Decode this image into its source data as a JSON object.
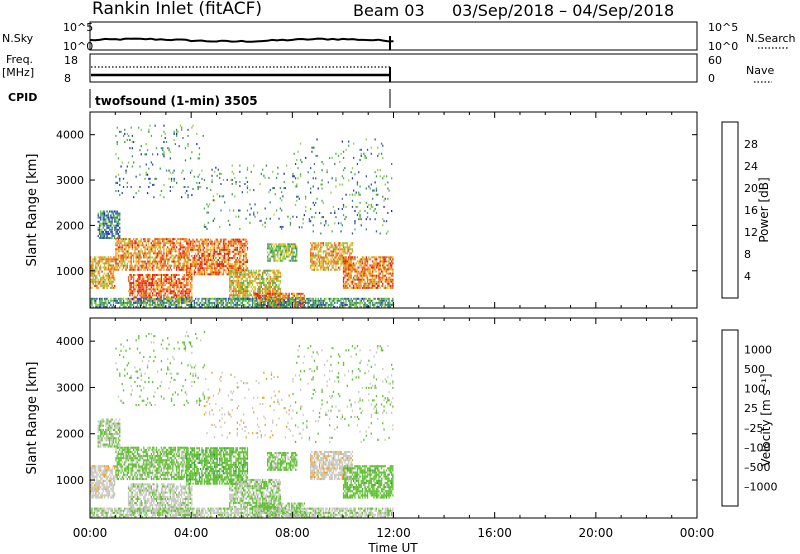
{
  "header": {
    "station": "Rankin Inlet (fitACF)",
    "beam": "Beam 03",
    "date_range": "03/Sep/2018 – 04/Sep/2018"
  },
  "params": {
    "nsky_label": "N.Sky",
    "nsky_ticks": [
      "10^5",
      "10^0"
    ],
    "nsearch_label": "N.Search",
    "freq_label": "Freq.",
    "freq_unit": "[MHz]",
    "freq_ticks": [
      "18",
      "8"
    ],
    "nave_ticks": [
      "60",
      "0"
    ],
    "nave_label": "Nave",
    "cpid_label": "CPID",
    "cpid_value": "twofsound (1-min) 3505"
  },
  "chart_data": [
    {
      "type": "heatmap",
      "panel": "power",
      "ylabel": "Slant Range [km]",
      "yticks": [
        "4000",
        "3000",
        "2000",
        "1000"
      ],
      "ylim": [
        180,
        4500
      ],
      "xlim_hours": [
        0,
        24
      ],
      "data_coverage_hours": [
        0,
        12
      ],
      "colorbar": {
        "label": "Power [dB]",
        "ticks": [
          "28",
          "24",
          "20",
          "16",
          "12",
          "8",
          "4"
        ],
        "range": [
          0,
          30
        ],
        "colors": [
          "#2020e0",
          "#2c4fb0",
          "#3a8a6a",
          "#48b048",
          "#8ccc40",
          "#e8c020",
          "#f09020",
          "#f06010",
          "#e02010"
        ]
      },
      "bands": [
        {
          "t0": 0.0,
          "t1": 1.0,
          "r0": 600,
          "r1": 1300,
          "level": 20
        },
        {
          "t0": 0.3,
          "t1": 1.2,
          "r0": 1700,
          "r1": 2300,
          "level": 8
        },
        {
          "t0": 1.0,
          "t1": 3.8,
          "r0": 1000,
          "r1": 1700,
          "level": 22
        },
        {
          "t0": 1.5,
          "t1": 4.0,
          "r0": 300,
          "r1": 900,
          "level": 25
        },
        {
          "t0": 3.8,
          "t1": 6.2,
          "r0": 900,
          "r1": 1700,
          "level": 24
        },
        {
          "t0": 5.5,
          "t1": 7.5,
          "r0": 350,
          "r1": 1000,
          "level": 18
        },
        {
          "t0": 6.5,
          "t1": 8.5,
          "r0": 200,
          "r1": 500,
          "level": 26
        },
        {
          "t0": 7.0,
          "t1": 8.2,
          "r0": 1200,
          "r1": 1600,
          "level": 14
        },
        {
          "t0": 8.7,
          "t1": 10.4,
          "r0": 1000,
          "r1": 1600,
          "level": 20
        },
        {
          "t0": 10.0,
          "t1": 12.0,
          "r0": 600,
          "r1": 1300,
          "level": 23
        },
        {
          "t0": 0.0,
          "t1": 12.0,
          "r0": 180,
          "r1": 380,
          "level": 10
        },
        {
          "t0": 1.0,
          "t1": 4.5,
          "r0": 2600,
          "r1": 4200,
          "level": 9,
          "sparse": true
        },
        {
          "t0": 4.5,
          "t1": 8.0,
          "r0": 1900,
          "r1": 3300,
          "level": 10,
          "sparse": true
        },
        {
          "t0": 8.0,
          "t1": 12.0,
          "r0": 1800,
          "r1": 3900,
          "level": 9,
          "sparse": true
        }
      ]
    },
    {
      "type": "heatmap",
      "panel": "velocity",
      "ylabel": "Slant Range [km]",
      "yticks": [
        "4000",
        "3000",
        "2000",
        "1000"
      ],
      "ylim": [
        180,
        4500
      ],
      "xlim_hours": [
        0,
        24
      ],
      "data_coverage_hours": [
        0,
        12
      ],
      "xticks": [
        "00:00",
        "04:00",
        "08:00",
        "12:00",
        "16:00",
        "20:00",
        "00:00"
      ],
      "xlabel": "Time UT",
      "colorbar": {
        "label": "Velocity [m s⁻¹]",
        "ticks": [
          "1000",
          "500",
          "100",
          "25",
          "–25",
          "–100",
          "–500",
          "–1000"
        ],
        "range": [
          -1200,
          1200
        ],
        "colors": [
          "#e01010",
          "#f04010",
          "#f07010",
          "#f0a020",
          "#c8c8c0",
          "#60c030",
          "#3a9a50",
          "#3a7a80",
          "#2c50a8",
          "#2020c8"
        ]
      },
      "bands": [
        {
          "t0": 0.0,
          "t1": 1.0,
          "r0": 600,
          "r1": 1300,
          "level": -150
        },
        {
          "t0": 0.3,
          "t1": 1.2,
          "r0": 1700,
          "r1": 2300,
          "level": 0
        },
        {
          "t0": 1.0,
          "t1": 3.8,
          "r0": 1000,
          "r1": 1700,
          "level": 60
        },
        {
          "t0": 1.5,
          "t1": 4.0,
          "r0": 300,
          "r1": 900,
          "level": -80
        },
        {
          "t0": 3.8,
          "t1": 6.2,
          "r0": 900,
          "r1": 1700,
          "level": 150
        },
        {
          "t0": 5.5,
          "t1": 7.5,
          "r0": 350,
          "r1": 1000,
          "level": 5
        },
        {
          "t0": 6.5,
          "t1": 8.5,
          "r0": 200,
          "r1": 500,
          "level": 80
        },
        {
          "t0": 7.0,
          "t1": 8.2,
          "r0": 1200,
          "r1": 1600,
          "level": 50
        },
        {
          "t0": 8.7,
          "t1": 10.4,
          "r0": 1000,
          "r1": 1600,
          "level": -150
        },
        {
          "t0": 10.0,
          "t1": 12.0,
          "r0": 600,
          "r1": 1300,
          "level": 120
        },
        {
          "t0": 0.0,
          "t1": 12.0,
          "r0": 180,
          "r1": 380,
          "level": -40
        },
        {
          "t0": 1.0,
          "t1": 4.5,
          "r0": 2600,
          "r1": 4200,
          "level": 60,
          "sparse": true
        },
        {
          "t0": 4.5,
          "t1": 8.0,
          "r0": 1900,
          "r1": 3300,
          "level": -200,
          "sparse": true
        },
        {
          "t0": 8.0,
          "t1": 12.0,
          "r0": 1800,
          "r1": 3900,
          "level": 10,
          "sparse": true
        }
      ]
    }
  ]
}
